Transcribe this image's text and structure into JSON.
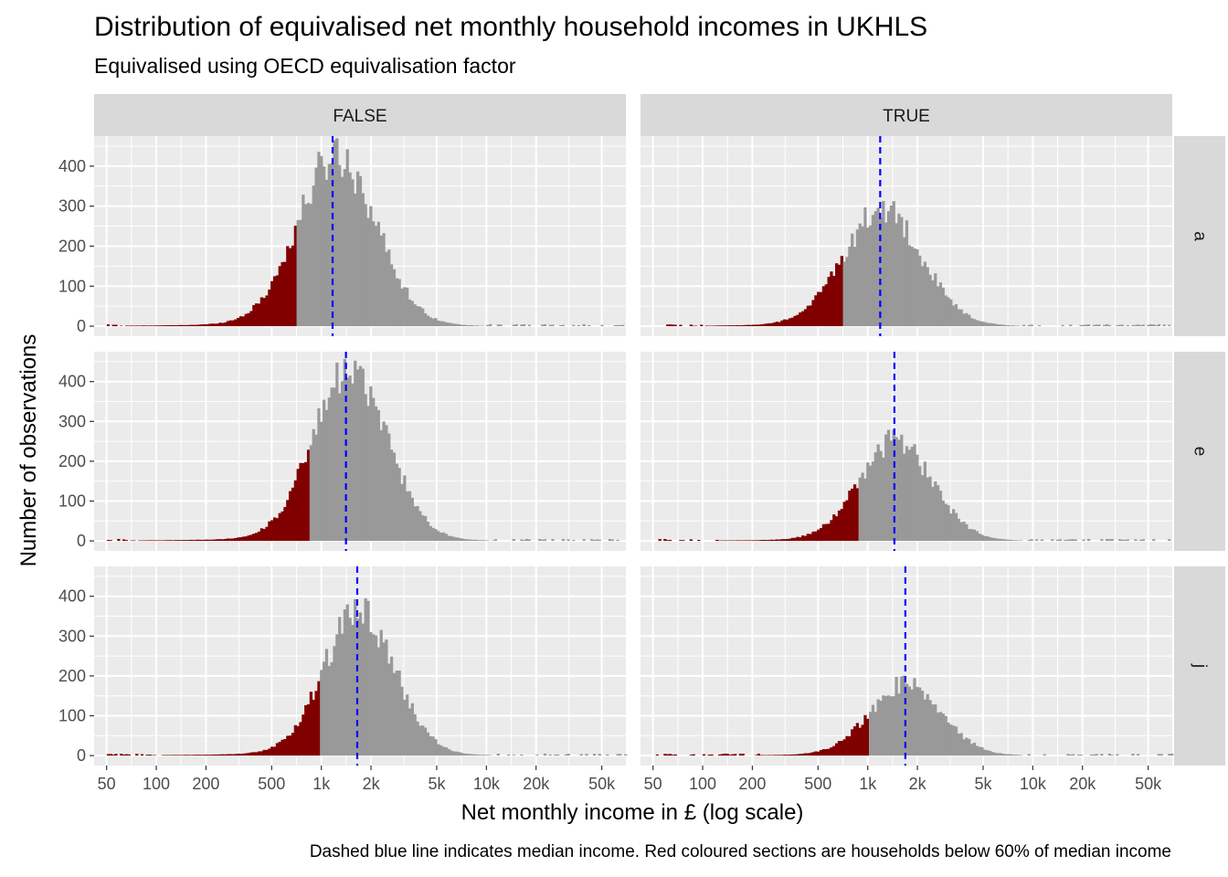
{
  "title": "Distribution of equivalised net monthly household incomes in UKHLS",
  "subtitle": "Equivalised using OECD equivalisation factor",
  "caption": "Dashed blue line indicates median income. Red coloured sections are households below 60% of median income",
  "chart_data": {
    "type": "bar",
    "kind": "faceted histogram",
    "xlabel": "Net monthly income in £ (log scale)",
    "ylabel": "Number of observations",
    "x_scale": "log10",
    "xlim": [
      42,
      70000
    ],
    "ylim": [
      -25,
      475
    ],
    "x_ticks": [
      {
        "value": 50,
        "label": "50"
      },
      {
        "value": 100,
        "label": "100"
      },
      {
        "value": 200,
        "label": "200"
      },
      {
        "value": 500,
        "label": "500"
      },
      {
        "value": 1000,
        "label": "1k"
      },
      {
        "value": 2000,
        "label": "2k"
      },
      {
        "value": 5000,
        "label": "5k"
      },
      {
        "value": 10000,
        "label": "10k"
      },
      {
        "value": 20000,
        "label": "20k"
      },
      {
        "value": 50000,
        "label": "50k"
      }
    ],
    "y_ticks": [
      0,
      100,
      200,
      300,
      400
    ],
    "col_strips": [
      "FALSE",
      "TRUE"
    ],
    "row_strips": [
      "a",
      "e",
      "j"
    ],
    "colors": {
      "below_threshold": "#800000",
      "above_threshold": "#999999",
      "median_line": "#0000ff",
      "panel_bg": "#ebebeb",
      "strip_bg": "#d9d9d9",
      "grid": "#ffffff"
    },
    "grid": true,
    "panels": [
      {
        "row": "a",
        "col": "FALSE",
        "median": 1170,
        "threshold": 702,
        "peak": 430,
        "sd_log": 0.235,
        "peak_at": 1250
      },
      {
        "row": "a",
        "col": "TRUE",
        "median": 1190,
        "threshold": 714,
        "peak": 295,
        "sd_log": 0.235,
        "peak_at": 1230
      },
      {
        "row": "e",
        "col": "FALSE",
        "median": 1410,
        "threshold": 846,
        "peak": 425,
        "sd_log": 0.225,
        "peak_at": 1500
      },
      {
        "row": "e",
        "col": "TRUE",
        "median": 1450,
        "threshold": 870,
        "peak": 250,
        "sd_log": 0.22,
        "peak_at": 1480
      },
      {
        "row": "j",
        "col": "FALSE",
        "median": 1650,
        "threshold": 990,
        "peak": 360,
        "sd_log": 0.215,
        "peak_at": 1700
      },
      {
        "row": "j",
        "col": "TRUE",
        "median": 1690,
        "threshold": 1014,
        "peak": 180,
        "sd_log": 0.215,
        "peak_at": 1700
      }
    ]
  }
}
